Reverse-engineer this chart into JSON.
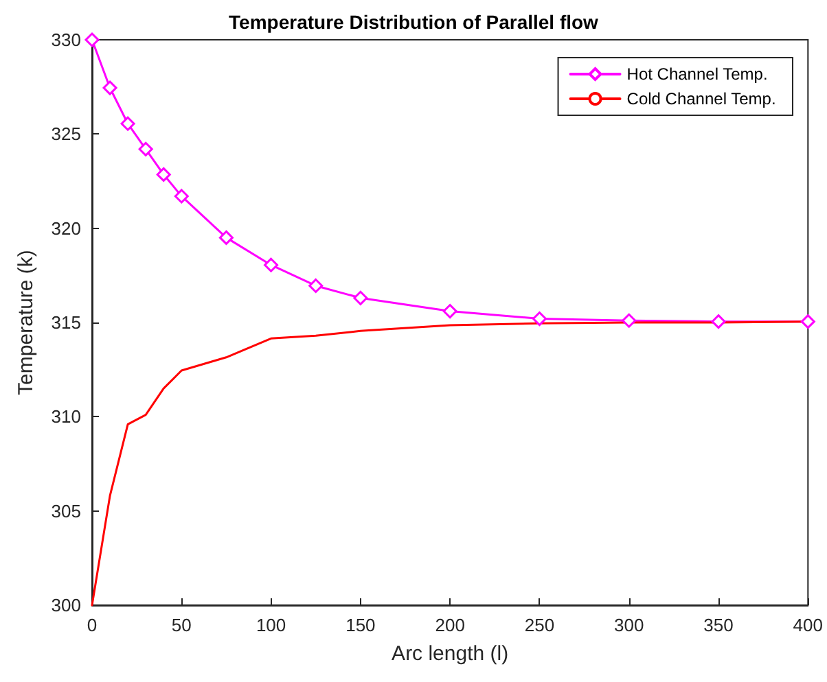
{
  "chart_data": {
    "type": "line",
    "title": "Temperature Distribution of Parallel flow",
    "xlabel": "Arc length (l)",
    "ylabel": "Temperature (k)",
    "series": [
      {
        "name": "Hot Channel Temp.",
        "color": "#ff00ff",
        "marker": "diamond",
        "x": [
          0,
          10,
          20,
          30,
          40,
          50,
          75,
          100,
          125,
          150,
          200,
          250,
          300,
          350,
          400
        ],
        "values": [
          330,
          327.45,
          325.55,
          324.2,
          322.85,
          321.7,
          319.5,
          318.05,
          316.95,
          316.3,
          315.6,
          315.2,
          315.1,
          315.05,
          315.05
        ]
      },
      {
        "name": "Cold Channel Temp.",
        "color": "#ff0000",
        "marker": "none",
        "x": [
          0,
          10,
          20,
          30,
          40,
          50,
          75,
          100,
          125,
          150,
          200,
          250,
          300,
          350,
          400
        ],
        "values": [
          300,
          305.8,
          309.6,
          310.1,
          311.5,
          312.45,
          313.15,
          314.15,
          314.3,
          314.55,
          314.85,
          314.95,
          315,
          315,
          315.05
        ]
      }
    ],
    "xlim": [
      0,
      400
    ],
    "xticks": [
      0,
      50,
      100,
      150,
      200,
      250,
      300,
      350,
      400
    ],
    "ylim": [
      300,
      330
    ],
    "yticks": [
      300,
      305,
      310,
      315,
      320,
      325,
      330
    ],
    "grid": false,
    "legend": "top right",
    "line_style": "solid"
  }
}
